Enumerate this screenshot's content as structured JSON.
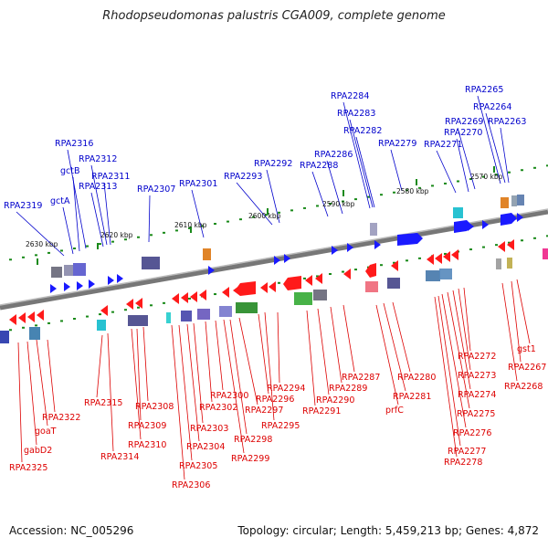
{
  "title": "Rhodopseudomonas palustris CGA009, complete genome",
  "footer": {
    "accession": "Accession: NC_005296",
    "summary": "Topology: circular; Length: 5,459,213 bp; Genes: 4,872"
  },
  "colors": {
    "forward_label": "#0000cc",
    "reverse_label": "#dd0000",
    "forward_gene": "#1a1aff",
    "reverse_gene": "#ff1a1a",
    "backbone": "#888888",
    "gc_marker": "#1a8a1a"
  },
  "scale_labels": [
    "2630 kbp",
    "2620 kbp",
    "2610 kbp",
    "2600 kbp",
    "2590 kbp",
    "2580 kbp",
    "2570 kbp"
  ],
  "forward_labels": [
    "RPA2319",
    "gctA",
    "gctB",
    "RPA2316",
    "RPA2313",
    "RPA2312",
    "RPA2311",
    "RPA2307",
    "RPA2301",
    "RPA2293",
    "RPA2292",
    "RPA2288",
    "RPA2286",
    "RPA2284",
    "RPA2283",
    "RPA2282",
    "RPA2279",
    "RPA2271",
    "RPA2270",
    "RPA2269",
    "RPA2265",
    "RPA2264",
    "RPA2263"
  ],
  "reverse_labels": [
    "RPA2325",
    "gabD2",
    "goaT",
    "RPA2322",
    "RPA2315",
    "RPA2314",
    "RPA2310",
    "RPA2309",
    "RPA2308",
    "RPA2306",
    "RPA2305",
    "RPA2304",
    "RPA2303",
    "RPA2302",
    "RPA2300",
    "RPA2299",
    "RPA2298",
    "RPA2297",
    "RPA2296",
    "RPA2295",
    "RPA2294",
    "RPA2291",
    "RPA2290",
    "RPA2289",
    "RPA2287",
    "prfC",
    "RPA2281",
    "RPA2280",
    "RPA2278",
    "RPA2277",
    "RPA2276",
    "RPA2275",
    "RPA2274",
    "RPA2273",
    "RPA2272",
    "RPA2268",
    "RPA2267",
    "gst1"
  ]
}
